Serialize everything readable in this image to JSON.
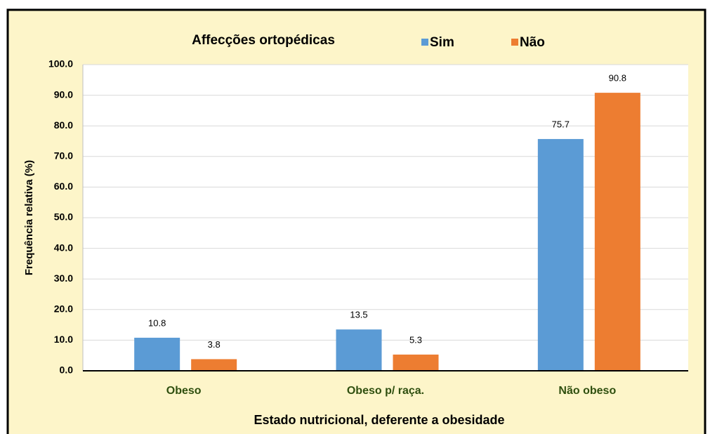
{
  "chart_data": {
    "type": "bar",
    "title": "Affecções ortopédicas",
    "x_label": "Estado nutricional, deferente a obesidade",
    "y_label": "Frequência relativa (%)",
    "categories": [
      "Obeso",
      "Obeso p/ raça.",
      "Não obeso"
    ],
    "series": [
      {
        "name": "Sim",
        "color": "#5b9bd5",
        "values": [
          10.8,
          13.5,
          75.7
        ]
      },
      {
        "name": "Não",
        "color": "#ed7d31",
        "values": [
          3.8,
          5.3,
          90.8
        ]
      }
    ],
    "ylim": [
      0,
      100
    ],
    "yticks": [
      {
        "value": 0,
        "label": "0.0"
      },
      {
        "value": 10,
        "label": "10.0"
      },
      {
        "value": 20,
        "label": "20.0"
      },
      {
        "value": 30,
        "label": "30.0"
      },
      {
        "value": 40,
        "label": "40.0"
      },
      {
        "value": 50,
        "label": "50.0"
      },
      {
        "value": 60,
        "label": "60.0"
      },
      {
        "value": 70,
        "label": "70.0"
      },
      {
        "value": 80,
        "label": "80.0"
      },
      {
        "value": 90,
        "label": "90.0"
      },
      {
        "value": 100,
        "label": "100.0"
      }
    ],
    "grid": true,
    "legend": "top"
  }
}
